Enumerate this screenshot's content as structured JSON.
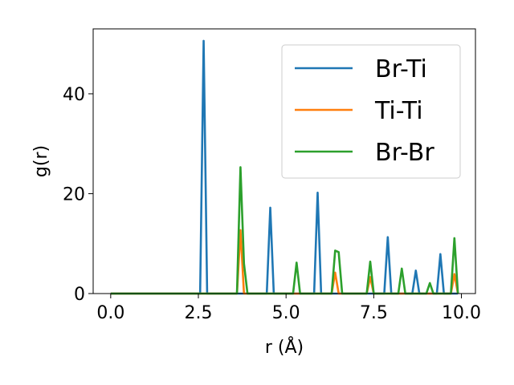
{
  "chart_data": {
    "type": "line",
    "xlabel": "r (Å)",
    "ylabel": "g(r)",
    "xlim": [
      -0.5,
      10.4
    ],
    "ylim": [
      0,
      53
    ],
    "xticks": [
      0.0,
      2.5,
      5.0,
      7.5,
      10.0
    ],
    "xtick_labels": [
      "0.0",
      "2.5",
      "5.0",
      "7.5",
      "10.0"
    ],
    "yticks": [
      0,
      20,
      40
    ],
    "ytick_labels": [
      "0",
      "20",
      "40"
    ],
    "grid": false,
    "legend_position": "top-right",
    "series": [
      {
        "name": "Br-Ti",
        "color": "#1f77b4",
        "x": [
          0.0,
          2.45,
          2.55,
          2.65,
          2.75,
          4.45,
          4.55,
          4.65,
          5.8,
          5.9,
          6.0,
          7.8,
          7.9,
          8.0,
          8.6,
          8.7,
          8.8,
          9.3,
          9.4,
          9.5,
          9.9
        ],
        "y": [
          0,
          0,
          0,
          50.6,
          0,
          0,
          17.2,
          0,
          0,
          20.2,
          0,
          0,
          11.3,
          0,
          0,
          4.6,
          0,
          0,
          7.9,
          0,
          0
        ]
      },
      {
        "name": "Ti-Ti",
        "color": "#ff7f0e",
        "x": [
          0.0,
          3.6,
          3.7,
          3.8,
          6.3,
          6.4,
          6.5,
          7.3,
          7.4,
          7.5,
          9.7,
          9.8,
          9.9
        ],
        "y": [
          0,
          0,
          12.7,
          0,
          0,
          4.2,
          0,
          0,
          3.3,
          0,
          0,
          3.9,
          0
        ]
      },
      {
        "name": "Br-Br",
        "color": "#2ca02c",
        "x": [
          0.0,
          3.6,
          3.7,
          3.8,
          3.9,
          5.2,
          5.3,
          5.4,
          6.3,
          6.4,
          6.5,
          6.6,
          7.3,
          7.4,
          7.5,
          8.2,
          8.3,
          8.4,
          9.0,
          9.1,
          9.2,
          9.7,
          9.8,
          9.9
        ],
        "y": [
          0,
          0,
          25.3,
          6.0,
          0,
          0,
          6.2,
          0,
          0,
          8.6,
          8.3,
          0,
          0,
          6.4,
          0,
          0,
          5.0,
          0,
          0,
          2.1,
          0,
          0,
          11.1,
          0
        ]
      }
    ]
  }
}
